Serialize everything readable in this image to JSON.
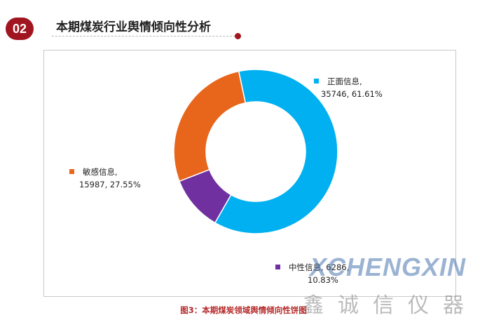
{
  "header": {
    "badge": "02",
    "title": "本期煤炭行业舆情倾向性分析"
  },
  "chart_data": {
    "type": "pie",
    "style": "donut",
    "categories": [
      "正面信息",
      "中性信息",
      "敏感信息"
    ],
    "values": [
      35746,
      6286,
      15987
    ],
    "percents": [
      "61.61%",
      "10.83%",
      "27.55%"
    ],
    "colors": [
      "#00b0f0",
      "#7030a0",
      "#e8661c"
    ],
    "data_labels": [
      {
        "name": "正面信息,",
        "value": "35746, 61.61%"
      },
      {
        "name": "中性信息, 6286,",
        "value": "10.83%"
      },
      {
        "name": "敏感信息,",
        "value": "15987, 27.55%"
      }
    ]
  },
  "watermark": {
    "latin": "XCHENGXIN",
    "cjk": "鑫诚信仪器"
  },
  "caption": "图3：本期煤炭领域舆情倾向性饼图"
}
